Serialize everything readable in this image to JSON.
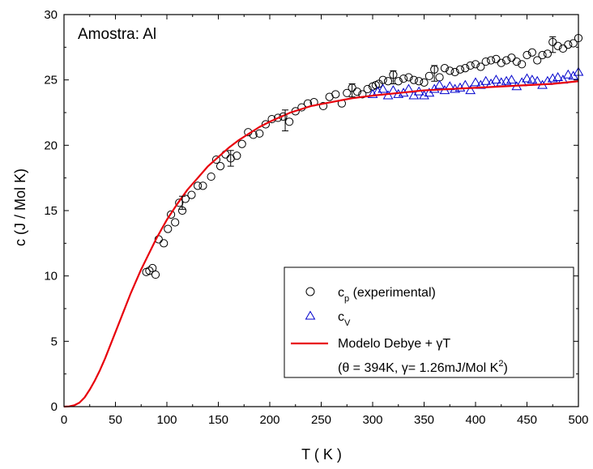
{
  "chart_data": {
    "type": "scatter",
    "title": "",
    "annotation": "Amostra: Al",
    "xlabel": "T ( K )",
    "ylabel": "c (J / Mol K)",
    "xlim": [
      0,
      500
    ],
    "ylim": [
      0,
      30
    ],
    "xticks": [
      0,
      50,
      100,
      150,
      200,
      250,
      300,
      350,
      400,
      450,
      500
    ],
    "yticks": [
      0,
      5,
      10,
      15,
      20,
      25,
      30
    ],
    "grid": false,
    "legend_position": "bottom-right",
    "legend": {
      "cp": {
        "main": "c",
        "sub": "p",
        "rest": " (experimental)"
      },
      "cv": {
        "main": "c",
        "sub": "V"
      },
      "model": {
        "text": "Modelo Debye + γT"
      },
      "params": {
        "text": "(θ = 394K, γ= 1.26mJ/Mol K",
        "sup": "2",
        "close": ")"
      }
    },
    "series": [
      {
        "name": "cp (experimental)",
        "marker": "circle",
        "color": "#000000",
        "x": [
          80,
          83,
          86,
          89,
          92,
          97,
          101,
          104,
          108,
          112,
          115,
          118,
          124,
          130,
          135,
          143,
          148,
          152,
          157,
          162,
          168,
          173,
          179,
          184,
          190,
          196,
          202,
          208,
          213,
          219,
          225,
          231,
          237,
          243,
          252,
          258,
          264,
          270,
          275,
          280,
          285,
          290,
          295,
          300,
          303,
          306,
          310,
          315,
          320,
          325,
          330,
          335,
          340,
          345,
          350,
          355,
          360,
          365,
          370,
          375,
          380,
          385,
          390,
          395,
          400,
          405,
          410,
          415,
          420,
          425,
          430,
          435,
          440,
          445,
          450,
          455,
          460,
          465,
          470,
          475,
          480,
          485,
          490,
          495,
          500
        ],
        "y": [
          10.3,
          10.4,
          10.6,
          10.1,
          12.8,
          12.5,
          13.6,
          14.7,
          14.1,
          15.6,
          15.0,
          15.9,
          16.2,
          16.9,
          16.9,
          17.6,
          18.9,
          18.4,
          19.3,
          19.0,
          19.2,
          20.1,
          21.0,
          20.8,
          20.9,
          21.6,
          22.0,
          22.1,
          22.2,
          21.8,
          22.6,
          22.9,
          23.2,
          23.3,
          23.0,
          23.7,
          23.9,
          23.2,
          24.0,
          24.4,
          24.1,
          23.9,
          24.3,
          24.5,
          24.6,
          24.7,
          25.0,
          24.9,
          25.4,
          24.9,
          25.1,
          25.2,
          25.0,
          24.9,
          24.8,
          25.3,
          25.8,
          25.2,
          25.9,
          25.7,
          25.6,
          25.8,
          25.9,
          26.1,
          26.2,
          26.0,
          26.4,
          26.5,
          26.6,
          26.3,
          26.5,
          26.7,
          26.4,
          26.2,
          26.9,
          27.1,
          26.5,
          26.9,
          27.0,
          27.9,
          27.6,
          27.4,
          27.7,
          27.8,
          28.2
        ]
      },
      {
        "name": "cV",
        "marker": "triangle",
        "color": "#0000cc",
        "x": [
          300,
          305,
          310,
          315,
          320,
          325,
          330,
          335,
          340,
          345,
          350,
          355,
          360,
          365,
          370,
          375,
          380,
          385,
          390,
          395,
          400,
          405,
          410,
          415,
          420,
          425,
          430,
          435,
          440,
          445,
          450,
          455,
          460,
          465,
          470,
          475,
          480,
          485,
          490,
          495,
          500
        ],
        "y": [
          23.9,
          24.1,
          24.3,
          23.8,
          24.2,
          23.9,
          24.0,
          24.3,
          23.8,
          24.1,
          23.8,
          24.0,
          24.3,
          24.6,
          24.2,
          24.5,
          24.3,
          24.4,
          24.6,
          24.2,
          24.8,
          24.6,
          24.9,
          24.7,
          25.0,
          24.8,
          24.9,
          25.0,
          24.5,
          24.8,
          25.1,
          25.0,
          24.9,
          24.6,
          24.9,
          25.1,
          25.2,
          25.0,
          25.4,
          25.3,
          25.6
        ]
      },
      {
        "name": "Modelo Debye + γT",
        "marker": "line",
        "color": "#e8000b",
        "x": [
          0,
          5,
          10,
          15,
          20,
          25,
          30,
          35,
          40,
          45,
          50,
          55,
          60,
          65,
          70,
          75,
          80,
          90,
          100,
          110,
          120,
          130,
          140,
          150,
          160,
          170,
          180,
          190,
          200,
          220,
          240,
          260,
          280,
          300,
          325,
          350,
          375,
          400,
          425,
          450,
          475,
          500
        ],
        "y": [
          0.0,
          0.02,
          0.1,
          0.3,
          0.7,
          1.3,
          2.0,
          2.8,
          3.7,
          4.7,
          5.7,
          6.7,
          7.7,
          8.7,
          9.6,
          10.5,
          11.3,
          12.9,
          14.3,
          15.5,
          16.6,
          17.5,
          18.4,
          19.1,
          19.8,
          20.4,
          20.9,
          21.4,
          21.8,
          22.5,
          23.0,
          23.3,
          23.6,
          23.8,
          24.0,
          24.2,
          24.3,
          24.4,
          24.5,
          24.6,
          24.7,
          24.9
        ]
      }
    ],
    "error_bars": [
      {
        "x": 115,
        "y": 15.6,
        "err": 0.5
      },
      {
        "x": 162,
        "y": 19.0,
        "err": 0.6
      },
      {
        "x": 215,
        "y": 21.9,
        "err": 0.8
      },
      {
        "x": 280,
        "y": 24.2,
        "err": 0.5
      },
      {
        "x": 320,
        "y": 25.2,
        "err": 0.5
      },
      {
        "x": 360,
        "y": 25.5,
        "err": 0.6
      },
      {
        "x": 475,
        "y": 27.7,
        "err": 0.6
      }
    ]
  }
}
